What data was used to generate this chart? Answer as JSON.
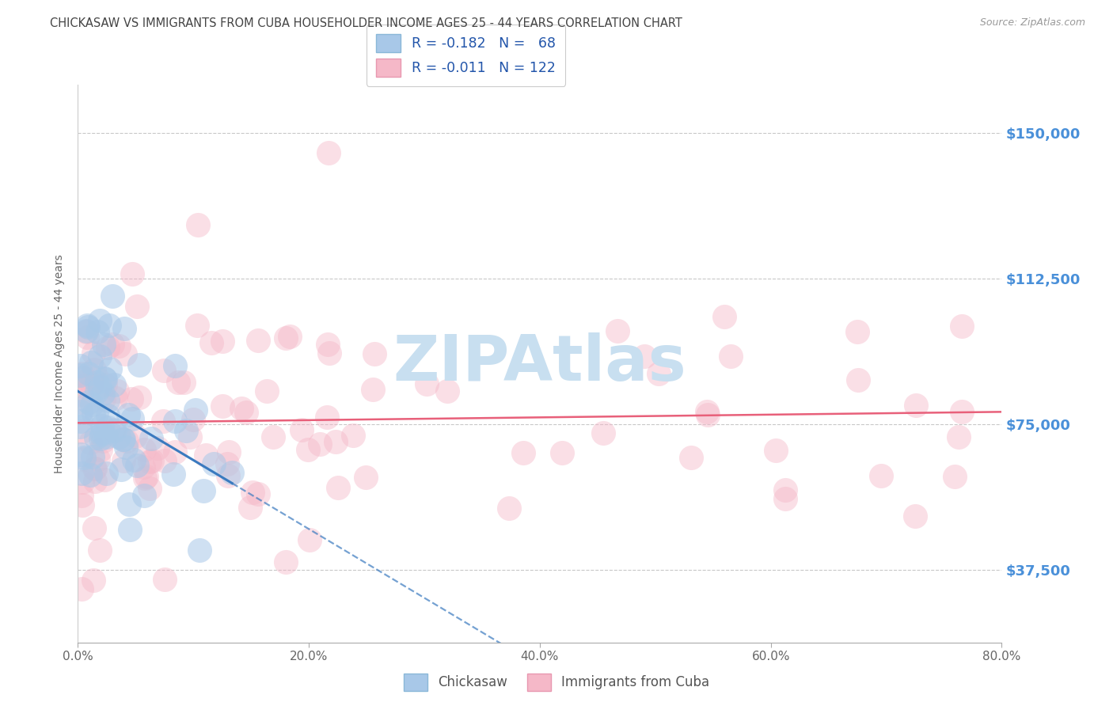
{
  "title": "CHICKASAW VS IMMIGRANTS FROM CUBA HOUSEHOLDER INCOME AGES 25 - 44 YEARS CORRELATION CHART",
  "source_text": "Source: ZipAtlas.com",
  "ylabel": "Householder Income Ages 25 - 44 years",
  "xlim": [
    0.0,
    80.0
  ],
  "ylim": [
    18750,
    162500
  ],
  "yticks": [
    37500,
    75000,
    112500,
    150000
  ],
  "ytick_labels": [
    "$37,500",
    "$75,000",
    "$112,500",
    "$150,000"
  ],
  "xtick_labels": [
    "0.0%",
    "20.0%",
    "40.0%",
    "60.0%",
    "80.0%"
  ],
  "xticks": [
    0,
    20,
    40,
    60,
    80
  ],
  "chickasaw_R": -0.182,
  "chickasaw_N": 68,
  "cuba_R": -0.011,
  "cuba_N": 122,
  "chickasaw_color": "#a8c8e8",
  "cuba_color": "#f5b8c8",
  "chickasaw_line_color": "#3a7abf",
  "cuba_line_color": "#e8607a",
  "background_color": "#ffffff",
  "grid_color": "#c8c8c8",
  "watermark": "ZIPAtlas",
  "watermark_color": "#c8dff0",
  "title_color": "#444444",
  "ytick_color": "#4a90d9",
  "legend_box_color": "#cccccc"
}
